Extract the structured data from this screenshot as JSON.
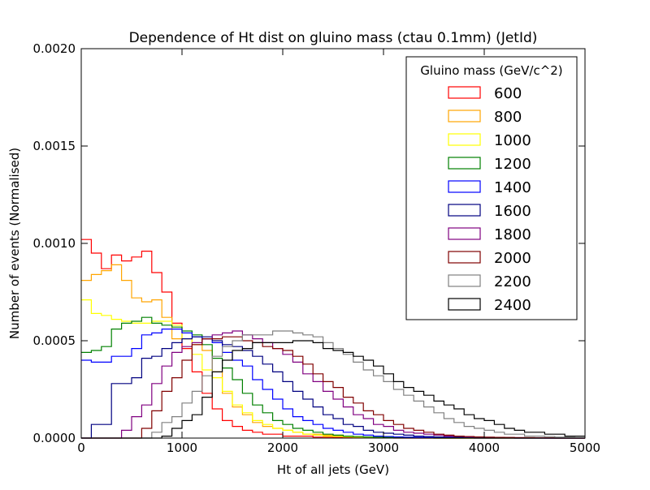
{
  "chart_data": {
    "type": "line",
    "title": "Dependence of Ht dist on gluino mass (ctau 0.1mm) (JetId)",
    "xlabel": "Ht of all jets (GeV)",
    "ylabel": "Number of events (Normalised)",
    "xlim": [
      0,
      5000
    ],
    "ylim": [
      0,
      0.002
    ],
    "xticks": [
      "0",
      "1000",
      "2000",
      "3000",
      "4000",
      "5000"
    ],
    "yticks": [
      "0.0000",
      "0.0005",
      "0.0010",
      "0.0015",
      "0.0020"
    ],
    "grid": false,
    "legend": {
      "title": "Gluino mass (GeV/c^2)",
      "placement": "top-right"
    },
    "bin_width": 100,
    "series": [
      {
        "name": "600",
        "color": "#ff0000",
        "values": [
          0.00102,
          0.00095,
          0.00087,
          0.00094,
          0.00091,
          0.00093,
          0.00096,
          0.00085,
          0.00075,
          0.00059,
          0.00046,
          0.00034,
          0.00023,
          0.00015,
          9e-05,
          6e-05,
          4e-05,
          3e-05,
          2e-05,
          2e-05,
          1e-05,
          1e-05,
          1e-05,
          5e-06,
          5e-06,
          3e-06,
          2e-06,
          2e-06,
          1e-06,
          1e-06,
          1e-06,
          0,
          0,
          0,
          0,
          0,
          0,
          0,
          0,
          0,
          0,
          0,
          0,
          0,
          0,
          0,
          0,
          0,
          0,
          0
        ]
      },
      {
        "name": "800",
        "color": "#ffa500",
        "values": [
          0.00081,
          0.00084,
          0.00086,
          0.00089,
          0.00081,
          0.00072,
          0.0007,
          0.00071,
          0.00062,
          0.00051,
          0.00051,
          0.00048,
          0.00045,
          0.00034,
          0.00023,
          0.00016,
          0.00012,
          8e-05,
          6e-05,
          5e-05,
          4e-05,
          3e-05,
          2e-05,
          2e-05,
          1.5e-05,
          1e-05,
          8e-06,
          6e-06,
          5e-06,
          4e-06,
          3e-06,
          2e-06,
          2e-06,
          1e-06,
          1e-06,
          0,
          0,
          0,
          0,
          0,
          0,
          0,
          0,
          0,
          0,
          0,
          0,
          0,
          0,
          0
        ]
      },
      {
        "name": "1000",
        "color": "#ffff00",
        "values": [
          0.00071,
          0.00064,
          0.00063,
          0.00061,
          0.0006,
          0.00059,
          0.00059,
          0.0006,
          0.0006,
          0.00058,
          0.00051,
          0.00043,
          0.00035,
          0.00031,
          0.00024,
          0.00017,
          0.00013,
          9e-05,
          7e-05,
          5e-05,
          4e-05,
          3e-05,
          2e-05,
          1.5e-05,
          1e-05,
          8e-06,
          6e-06,
          5e-06,
          4e-06,
          3e-06,
          2e-06,
          2e-06,
          1e-06,
          1e-06,
          0,
          0,
          0,
          0,
          0,
          0,
          0,
          0,
          0,
          0,
          0,
          0,
          0,
          0,
          0,
          0
        ]
      },
      {
        "name": "1200",
        "color": "#008000",
        "values": [
          0.00044,
          0.00045,
          0.00047,
          0.00056,
          0.00059,
          0.0006,
          0.00062,
          0.00059,
          0.00058,
          0.00057,
          0.00055,
          0.00053,
          0.00048,
          0.00041,
          0.00036,
          0.0003,
          0.00023,
          0.00017,
          0.00013,
          9e-05,
          7e-05,
          5e-05,
          4e-05,
          3e-05,
          2e-05,
          1.5e-05,
          1e-05,
          8e-06,
          6e-06,
          5e-06,
          4e-06,
          3e-06,
          2e-06,
          2e-06,
          1e-06,
          0,
          0,
          0,
          0,
          0,
          0,
          0,
          0,
          0,
          0,
          0,
          0,
          0,
          0,
          0
        ]
      },
      {
        "name": "1400",
        "color": "#0000ff",
        "values": [
          0.0004,
          0.00039,
          0.00039,
          0.00042,
          0.00042,
          0.00046,
          0.00053,
          0.00054,
          0.00056,
          0.00056,
          0.00054,
          0.00052,
          0.00051,
          0.00049,
          0.00044,
          0.0004,
          0.00037,
          0.0003,
          0.00025,
          0.0002,
          0.00015,
          0.00011,
          9e-05,
          7e-05,
          5e-05,
          4e-05,
          3e-05,
          2e-05,
          1.5e-05,
          1e-05,
          8e-06,
          6e-06,
          5e-06,
          4e-06,
          3e-06,
          2e-06,
          2e-06,
          1e-06,
          1e-06,
          0,
          0,
          0,
          0,
          0,
          0,
          0,
          0,
          0,
          0,
          0
        ]
      },
      {
        "name": "1600",
        "color": "#000080",
        "values": [
          0,
          7e-05,
          7e-05,
          0.00028,
          0.00028,
          0.00031,
          0.00041,
          0.00042,
          0.00046,
          0.00049,
          0.00051,
          0.00052,
          0.00052,
          0.0005,
          0.00048,
          0.00047,
          0.00045,
          0.00042,
          0.00038,
          0.00034,
          0.00029,
          0.00024,
          0.0002,
          0.00016,
          0.00012,
          0.0001,
          7e-05,
          6e-05,
          4e-05,
          3e-05,
          2.5e-05,
          2e-05,
          1.5e-05,
          1e-05,
          8e-06,
          6e-06,
          5e-06,
          4e-06,
          3e-06,
          2e-06,
          2e-06,
          1e-06,
          1e-06,
          0,
          0,
          0,
          0,
          0,
          0,
          0
        ]
      },
      {
        "name": "1800",
        "color": "#800080",
        "values": [
          0,
          0,
          0,
          0,
          4e-05,
          0.00011,
          0.00017,
          0.00028,
          0.00037,
          0.00044,
          0.00047,
          0.00049,
          0.00051,
          0.00053,
          0.00054,
          0.00055,
          0.00053,
          0.00051,
          0.00049,
          0.00046,
          0.00043,
          0.00039,
          0.00033,
          0.00029,
          0.00024,
          0.0002,
          0.00016,
          0.00012,
          0.0001,
          7e-05,
          6e-05,
          4e-05,
          3e-05,
          2.5e-05,
          2e-05,
          1.5e-05,
          1e-05,
          8e-06,
          6e-06,
          5e-06,
          4e-06,
          3e-06,
          2e-06,
          2e-06,
          1e-06,
          1e-06,
          0,
          0,
          0,
          0
        ]
      },
      {
        "name": "2000",
        "color": "#800000",
        "values": [
          0,
          0,
          0,
          0,
          0,
          0,
          5e-05,
          0.00014,
          0.00024,
          0.00031,
          0.0004,
          0.00048,
          0.00051,
          0.00051,
          0.00052,
          0.00052,
          0.0005,
          0.00049,
          0.00047,
          0.00046,
          0.00045,
          0.00042,
          0.00038,
          0.00033,
          0.00029,
          0.00026,
          0.00021,
          0.00018,
          0.00014,
          0.00012,
          9e-05,
          7e-05,
          5e-05,
          4e-05,
          3e-05,
          2e-05,
          1.5e-05,
          1e-05,
          8e-06,
          6e-06,
          5e-06,
          4e-06,
          3e-06,
          2e-06,
          2e-06,
          1e-06,
          1e-06,
          0,
          0,
          0
        ]
      },
      {
        "name": "2200",
        "color": "#808080",
        "values": [
          0,
          0,
          0,
          0,
          0,
          0,
          0,
          3e-05,
          8e-05,
          0.00011,
          0.00018,
          0.00024,
          0.00032,
          0.00042,
          0.00047,
          0.0005,
          0.00053,
          0.00053,
          0.00053,
          0.00055,
          0.00055,
          0.00054,
          0.00053,
          0.00052,
          0.00049,
          0.00046,
          0.00043,
          0.00039,
          0.00035,
          0.00032,
          0.00029,
          0.00025,
          0.00022,
          0.00019,
          0.00016,
          0.00013,
          0.0001,
          8e-05,
          6e-05,
          5e-05,
          4e-05,
          3e-05,
          2e-05,
          2e-05,
          1e-05,
          1e-05,
          8e-06,
          5e-06,
          4e-06,
          2e-06
        ]
      },
      {
        "name": "2400",
        "color": "#000000",
        "values": [
          0,
          0,
          0,
          0,
          0,
          0,
          0,
          0,
          1e-05,
          5e-05,
          9e-05,
          0.00012,
          0.00021,
          0.00034,
          0.0004,
          0.00045,
          0.00046,
          0.00049,
          0.00049,
          0.00049,
          0.00049,
          0.0005,
          0.0005,
          0.00049,
          0.00046,
          0.00045,
          0.00044,
          0.00042,
          0.0004,
          0.00037,
          0.00033,
          0.00029,
          0.00026,
          0.00024,
          0.00022,
          0.00019,
          0.00017,
          0.00015,
          0.00012,
          0.0001,
          9e-05,
          7e-05,
          5e-05,
          4e-05,
          3e-05,
          3e-05,
          2e-05,
          2e-05,
          1e-05,
          1e-05
        ]
      }
    ]
  }
}
